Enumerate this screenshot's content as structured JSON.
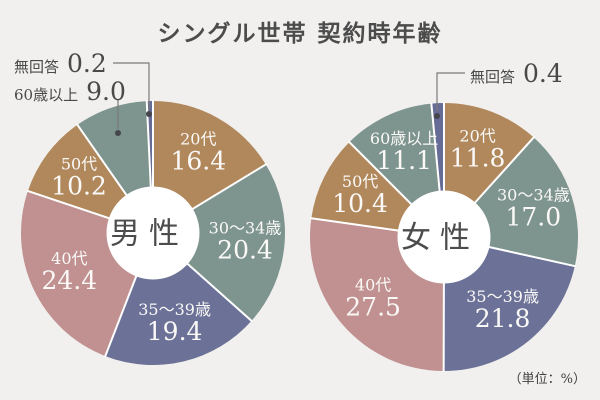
{
  "title": "シングル世帯 契約時年齢",
  "unit_note": "（単位：%）",
  "colors": {
    "background": "#f1f0ee",
    "brown": "#b1885c",
    "teal": "#7e948e",
    "purple": "#6b7197",
    "rose": "#c09190",
    "no_answer": "#666c95",
    "text_dark": "#4c4c4c",
    "text_light": "#faf9f7",
    "leader_line": "#7a7a7a",
    "leader_dot": "#45454b"
  },
  "chart_data": [
    {
      "type": "pie",
      "subtype": "donut",
      "title": "男性",
      "unit": "%",
      "start_angle": "top",
      "direction": "clockwise",
      "segments": [
        {
          "label": "20代",
          "value": 16.4,
          "display": "16.4",
          "color": "#b1885c",
          "placement": "inside"
        },
        {
          "label": "30〜34歳",
          "value": 20.4,
          "display": "20.4",
          "color": "#7e948e",
          "placement": "inside"
        },
        {
          "label": "35〜39歳",
          "value": 19.4,
          "display": "19.4",
          "color": "#6b7197",
          "placement": "inside"
        },
        {
          "label": "40代",
          "value": 24.4,
          "display": "24.4",
          "color": "#c09190",
          "placement": "inside"
        },
        {
          "label": "50代",
          "value": 10.2,
          "display": "10.2",
          "color": "#b1885c",
          "placement": "inside"
        },
        {
          "label": "60歳以上",
          "value": 9.0,
          "display": "9.0",
          "color": "#7e948e",
          "placement": "callout"
        },
        {
          "label": "無回答",
          "value": 0.2,
          "display": "0.2",
          "color": "#666c95",
          "placement": "callout"
        }
      ]
    },
    {
      "type": "pie",
      "subtype": "donut",
      "title": "女性",
      "unit": "%",
      "start_angle": "top",
      "direction": "clockwise",
      "segments": [
        {
          "label": "20代",
          "value": 11.8,
          "display": "11.8",
          "color": "#b1885c",
          "placement": "inside"
        },
        {
          "label": "30〜34歳",
          "value": 17.0,
          "display": "17.0",
          "color": "#7e948e",
          "placement": "inside"
        },
        {
          "label": "35〜39歳",
          "value": 21.8,
          "display": "21.8",
          "color": "#6b7197",
          "placement": "inside"
        },
        {
          "label": "40代",
          "value": 27.5,
          "display": "27.5",
          "color": "#c09190",
          "placement": "inside"
        },
        {
          "label": "50代",
          "value": 10.4,
          "display": "10.4",
          "color": "#b1885c",
          "placement": "inside"
        },
        {
          "label": "60歳以上",
          "value": 11.1,
          "display": "11.1",
          "color": "#7e948e",
          "placement": "inside"
        },
        {
          "label": "無回答",
          "value": 0.4,
          "display": "0.4",
          "color": "#666c95",
          "placement": "callout"
        }
      ]
    }
  ]
}
